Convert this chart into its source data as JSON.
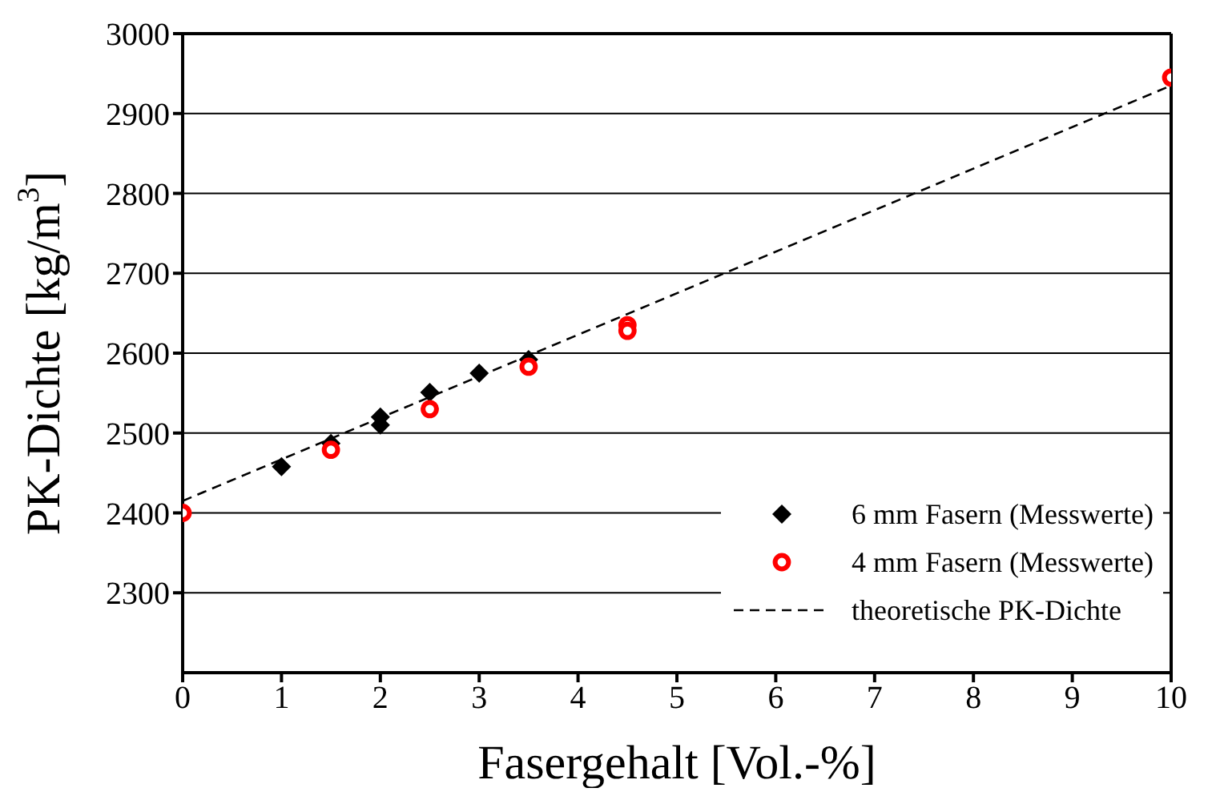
{
  "chart_data": {
    "type": "scatter",
    "xlabel": "Fasergehalt  [Vol.-%]",
    "ylabel": "PK-Dichte  [kg/m$^{3}$]",
    "xlim": [
      0,
      10
    ],
    "xticks": [
      0,
      1,
      2,
      3,
      4,
      5,
      6,
      7,
      8,
      9,
      10
    ],
    "ylim": [
      2200,
      3000
    ],
    "yticks": [
      2300,
      2400,
      2500,
      2600,
      2700,
      2800,
      2900,
      3000
    ],
    "grid": "y",
    "legend": "bottom right",
    "series": [
      {
        "name": "6 mm Fasern (Messwerte)",
        "marker": "diamond",
        "color": "#000000",
        "x": [
          1,
          1.5,
          2,
          2,
          2.5,
          3,
          3.5
        ],
        "values": [
          2458,
          2487,
          2520,
          2510,
          2551,
          2575,
          2592
        ]
      },
      {
        "name": "4 mm Fasern (Messwerte)",
        "marker": "circle",
        "color": "#ff0000",
        "x": [
          0,
          1.5,
          2.5,
          3.5,
          4.5,
          4.5,
          10
        ],
        "values": [
          2400,
          2479,
          2530,
          2583,
          2635,
          2628,
          2945
        ]
      },
      {
        "name": "theoretische PK-Dichte",
        "type": "line",
        "marker": "none",
        "line_style": "dashed",
        "color": "#000000",
        "x": [
          0,
          10
        ],
        "values": [
          2415,
          2935
        ]
      }
    ]
  }
}
